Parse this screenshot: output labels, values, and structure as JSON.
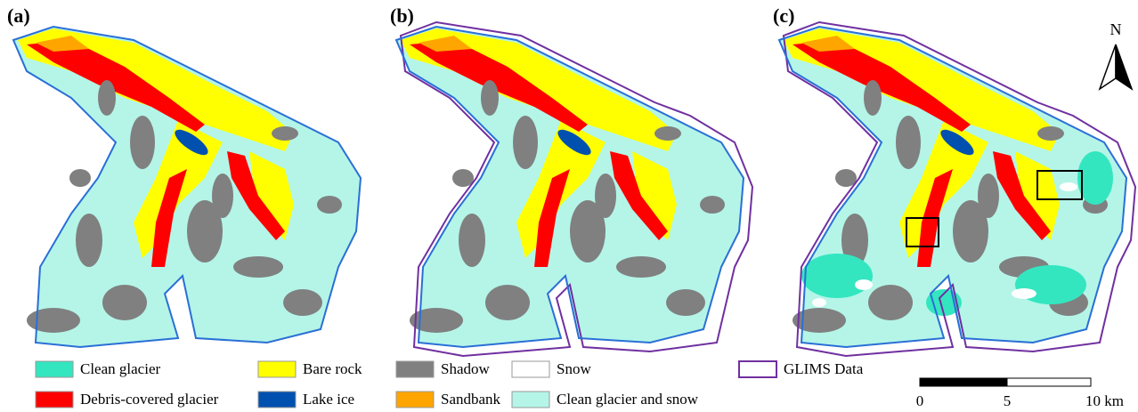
{
  "panels": [
    {
      "label": "(a)"
    },
    {
      "label": "(b)"
    },
    {
      "label": "(c)"
    }
  ],
  "north_arrow": {
    "label": "N"
  },
  "legend": [
    {
      "name": "Clean glacier",
      "color": "#33e6c0"
    },
    {
      "name": "Debris-covered glacier",
      "color": "#ff0000"
    },
    {
      "name": "Bare rock",
      "color": "#ffff00"
    },
    {
      "name": "Lake ice",
      "color": "#0050b0"
    },
    {
      "name": "Shadow",
      "color": "#808080"
    },
    {
      "name": "Sandbank",
      "color": "#ffa500"
    },
    {
      "name": "Snow",
      "color": "#ffffff"
    },
    {
      "name": "Clean glacier and snow",
      "color": "#b4f5e8"
    },
    {
      "name": "GLIMS Data",
      "color": "#7030a0"
    }
  ],
  "scale_bar": {
    "labels": [
      "0",
      "5",
      "10 km"
    ]
  }
}
